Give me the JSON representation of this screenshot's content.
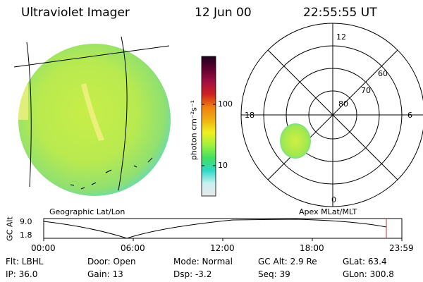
{
  "header": {
    "title": "Ultraviolet Imager",
    "date": "12 Jun 00",
    "time": "22:55:55 UT"
  },
  "colorbar": {
    "unit_label": "photon cm⁻²s⁻¹",
    "tick_100": "100",
    "tick_10": "10",
    "stops": [
      "#e8e8e8",
      "#c8f0f0",
      "#30d8c8",
      "#40e060",
      "#a0f040",
      "#f0f020",
      "#f0b010",
      "#f08010",
      "#d02020",
      "#a01040",
      "#600030",
      "#200020"
    ]
  },
  "image_panel": {
    "caption": "Geographic Lat/Lon"
  },
  "polar_panel": {
    "caption": "Apex MLat/MLT",
    "mlt_12": "12",
    "mlt_18": "18",
    "mlt_6": "6",
    "mlt_0": "0",
    "lat_80": "80",
    "lat_70": "70",
    "lat_60": "60"
  },
  "altitude_plot": {
    "ylabel": "GC Alt",
    "ytick_top": "9.0",
    "ytick_bottom": "1.8",
    "xticks": [
      "00:00",
      "06:00",
      "12:00",
      "18:00",
      "23:59"
    ],
    "marker_time": "22:55:55",
    "marker_color": "#c03030"
  },
  "info": {
    "filter": "Flt: LBHL",
    "ip": "IP: 36.0",
    "door": "Door: Open",
    "gain": "Gain: 13",
    "mode": "Mode: Normal",
    "dsp": "Dsp:    -3.2",
    "gc_alt": "GC Alt: 2.9 Re",
    "seq": "Seq: 39",
    "glat": "GLat: 63.4",
    "glon": "GLon: 300.8"
  }
}
